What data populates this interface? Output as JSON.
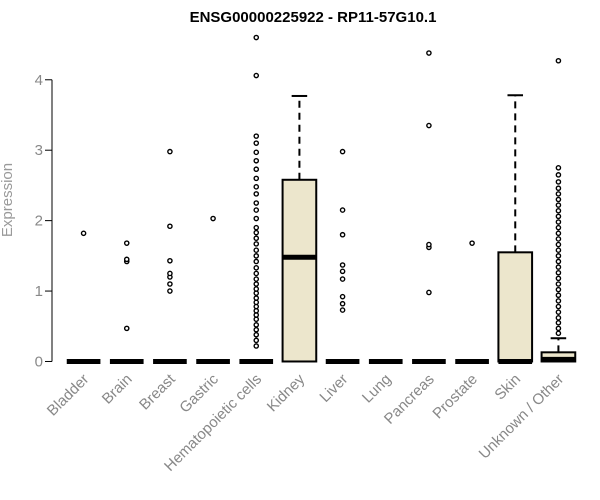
{
  "chart_data": {
    "type": "boxplot",
    "title": "ENSG00000225922 - RP11-57G10.1",
    "xlabel": "",
    "ylabel": "Expression",
    "ylim": [
      -0.05,
      4.65
    ],
    "yticks": [
      0,
      1,
      2,
      3,
      4
    ],
    "grid": false,
    "legend": "none",
    "box_fill": "#ece6cc",
    "categories": [
      "Bladder",
      "Brain",
      "Breast",
      "Gastric",
      "Hematopoietic cells",
      "Kidney",
      "Liver",
      "Lung",
      "Pancreas",
      "Prostate",
      "Skin",
      "Unknown / Other"
    ],
    "boxes": [
      {
        "min": 0,
        "q1": 0,
        "median": 0,
        "q3": 0,
        "max": 0,
        "outliers": [
          1.82
        ]
      },
      {
        "min": 0,
        "q1": 0,
        "median": 0,
        "q3": 0,
        "max": 0,
        "outliers": [
          0.47,
          1.42,
          1.45,
          1.68
        ]
      },
      {
        "min": 0,
        "q1": 0,
        "median": 0,
        "q3": 0,
        "max": 0,
        "outliers": [
          1.0,
          1.1,
          1.2,
          1.25,
          1.43,
          1.92,
          2.98
        ]
      },
      {
        "min": 0,
        "q1": 0,
        "median": 0,
        "q3": 0,
        "max": 0,
        "outliers": [
          2.03
        ]
      },
      {
        "min": 0,
        "q1": 0,
        "median": 0,
        "q3": 0,
        "max": 0,
        "outliers": [
          0.22,
          0.3,
          0.38,
          0.45,
          0.52,
          0.6,
          0.66,
          0.72,
          0.78,
          0.84,
          0.9,
          0.97,
          1.03,
          1.1,
          1.17,
          1.25,
          1.33,
          1.42,
          1.5,
          1.58,
          1.67,
          1.75,
          1.83,
          1.9,
          2.03,
          2.15,
          2.25,
          2.38,
          2.48,
          2.6,
          2.73,
          2.85,
          2.97,
          3.1,
          3.2,
          4.06,
          4.6
        ]
      },
      {
        "min": 0,
        "q1": 0,
        "median": 1.48,
        "q3": 2.58,
        "max": 3.77,
        "outliers": []
      },
      {
        "min": 0,
        "q1": 0,
        "median": 0,
        "q3": 0,
        "max": 0,
        "outliers": [
          0.73,
          0.82,
          0.92,
          1.17,
          1.28,
          1.37,
          1.8,
          2.15,
          2.98
        ]
      },
      {
        "min": 0,
        "q1": 0,
        "median": 0,
        "q3": 0,
        "max": 0,
        "outliers": []
      },
      {
        "min": 0,
        "q1": 0,
        "median": 0,
        "q3": 0,
        "max": 0,
        "outliers": [
          0.98,
          1.62,
          1.66,
          3.35,
          4.38
        ]
      },
      {
        "min": 0,
        "q1": 0,
        "median": 0,
        "q3": 0,
        "max": 0,
        "outliers": [
          1.68
        ]
      },
      {
        "min": 0,
        "q1": 0,
        "median": 0,
        "q3": 1.55,
        "max": 3.78,
        "outliers": []
      },
      {
        "min": 0,
        "q1": 0,
        "median": 0.03,
        "q3": 0.13,
        "max": 0.33,
        "outliers": [
          0.4,
          0.47,
          0.55,
          0.62,
          0.7,
          0.78,
          0.86,
          0.94,
          1.02,
          1.1,
          1.18,
          1.26,
          1.34,
          1.42,
          1.5,
          1.58,
          1.66,
          1.74,
          1.82,
          1.9,
          1.98,
          2.06,
          2.14,
          2.22,
          2.3,
          2.38,
          2.46,
          2.55,
          2.65,
          2.75,
          4.27
        ]
      }
    ]
  }
}
